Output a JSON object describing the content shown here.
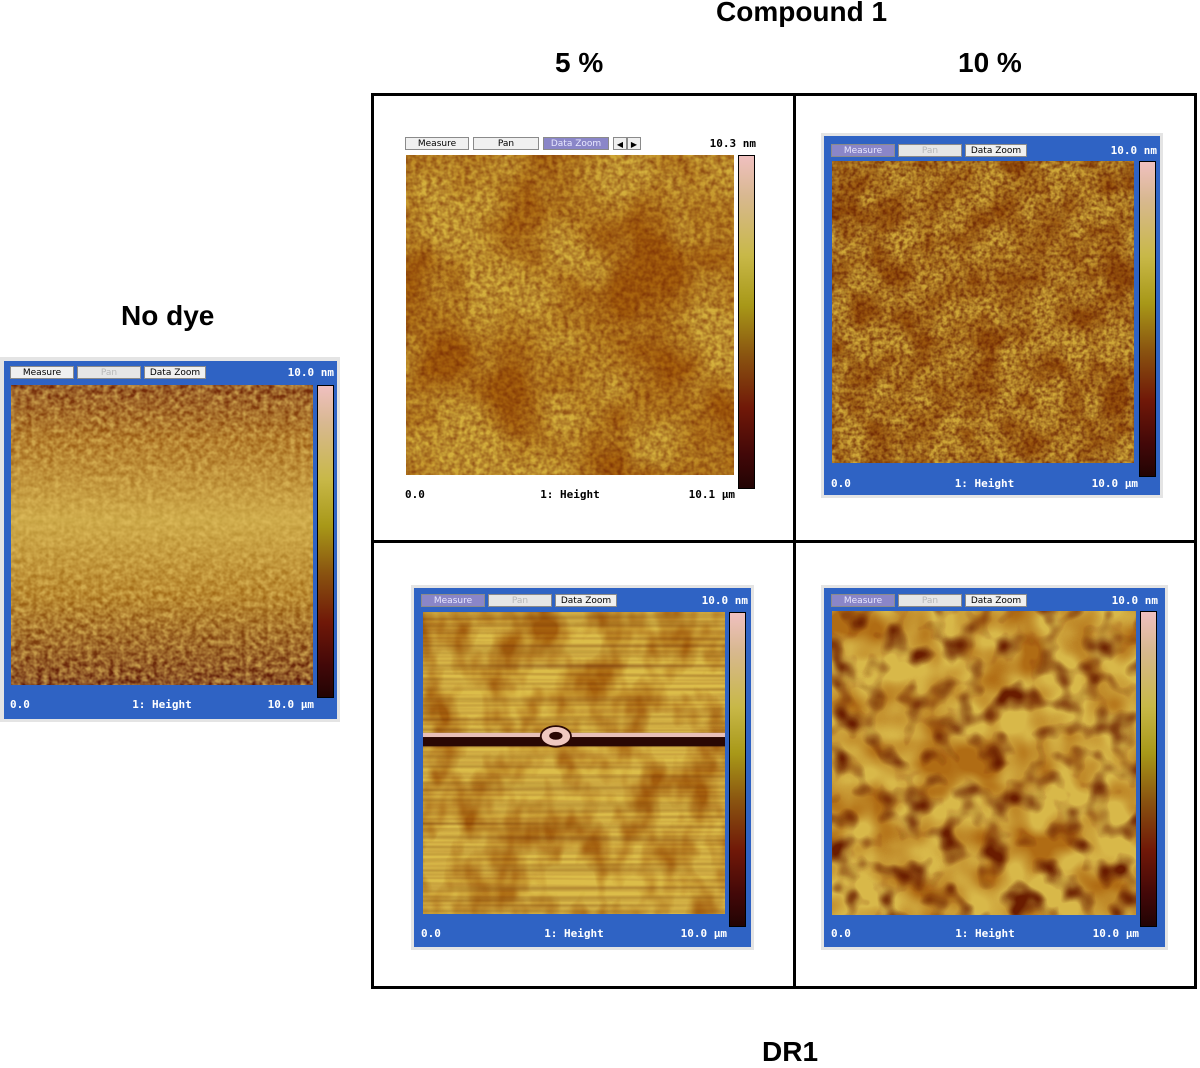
{
  "headers": {
    "compound": "Compound 1",
    "pct5": "5 %",
    "pct10": "10 %",
    "no_dye": "No dye",
    "dr1": "DR1"
  },
  "panels": [
    {
      "id": "no-dye",
      "btn_measure": "Measure",
      "btn_pan": "Pan",
      "btn_zoom": "Data Zoom",
      "scale_max": "10.0 nm",
      "origin": "0.0",
      "channel": "1: Height",
      "size": "10.0 µm"
    },
    {
      "id": "compound1-5",
      "btn_measure": "Measure",
      "btn_pan": "Pan",
      "btn_zoom": "Data Zoom",
      "scale_max": "10.3 nm",
      "origin": "0.0",
      "channel": "1: Height",
      "size": "10.1 µm"
    },
    {
      "id": "compound1-10",
      "btn_measure": "Measure",
      "btn_pan": "Pan",
      "btn_zoom": "Data Zoom",
      "scale_max": "10.0 nm",
      "origin": "0.0",
      "channel": "1: Height",
      "size": "10.0 µm"
    },
    {
      "id": "dr1-5",
      "btn_measure": "Measure",
      "btn_pan": "Pan",
      "btn_zoom": "Data Zoom",
      "scale_max": "10.0 nm",
      "origin": "0.0",
      "channel": "1: Height",
      "size": "10.0 µm"
    },
    {
      "id": "dr1-10",
      "btn_measure": "Measure",
      "btn_pan": "Pan",
      "btn_zoom": "Data Zoom",
      "scale_max": "10.0 nm",
      "origin": "0.0",
      "channel": "1: Height",
      "size": "10.0 µm"
    }
  ],
  "colors": {
    "frame_blue": "#2f63c4",
    "afm_light": "#d7b240",
    "afm_mid": "#a7660f",
    "afm_dark": "#5a1406"
  }
}
